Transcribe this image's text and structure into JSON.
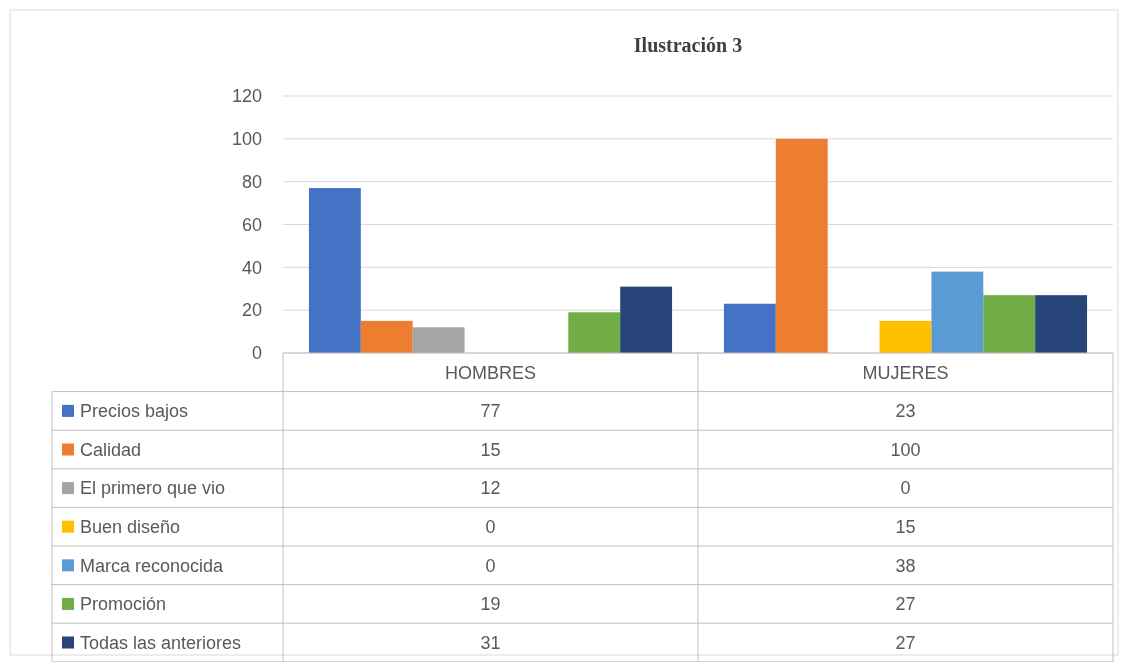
{
  "chart_data": {
    "type": "bar",
    "title": "Ilustración 3",
    "categories": [
      "HOMBRES",
      "MUJERES"
    ],
    "series": [
      {
        "name": "Precios bajos",
        "color": "#4472c4",
        "values": [
          77,
          23
        ]
      },
      {
        "name": "Calidad",
        "color": "#ed7d31",
        "values": [
          15,
          100
        ]
      },
      {
        "name": "El primero que vio",
        "color": "#a5a5a5",
        "values": [
          12,
          0
        ]
      },
      {
        "name": "Buen diseño",
        "color": "#ffc000",
        "values": [
          0,
          15
        ]
      },
      {
        "name": "Marca reconocida",
        "color": "#5b9bd5",
        "values": [
          0,
          38
        ]
      },
      {
        "name": "Promoción",
        "color": "#70ad47",
        "values": [
          19,
          27
        ]
      },
      {
        "name": "Todas las anteriores",
        "color": "#264478",
        "values": [
          31,
          27
        ]
      }
    ],
    "ylim": [
      0,
      120
    ],
    "yticks": [
      0,
      20,
      40,
      60,
      80,
      100,
      120
    ],
    "grid": "y",
    "legend": "bottom",
    "data_labels": true
  }
}
